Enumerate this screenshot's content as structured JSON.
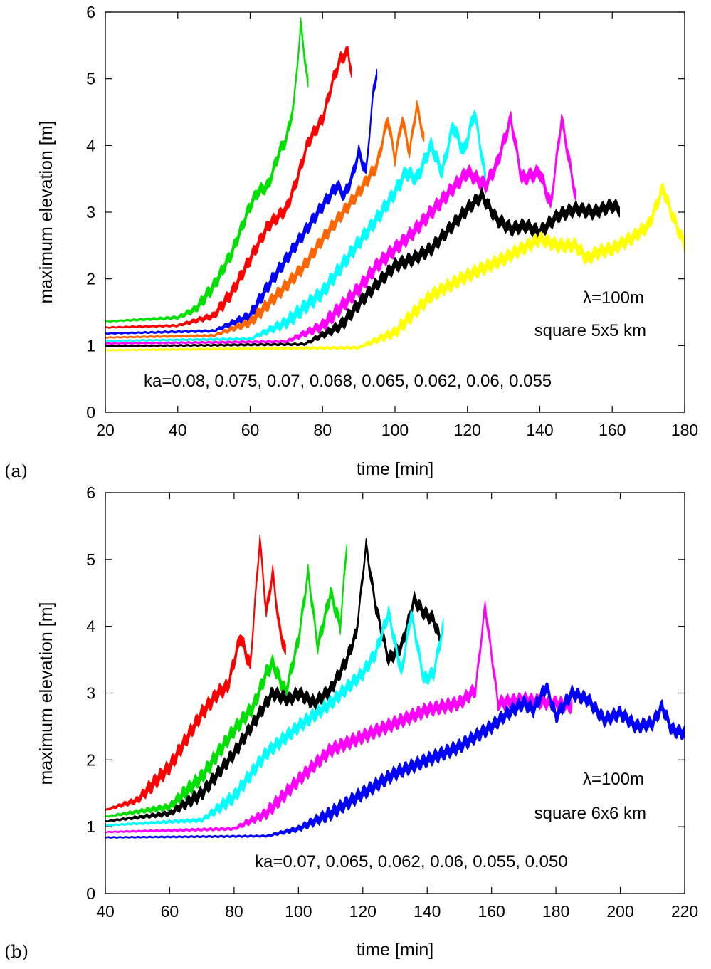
{
  "chart_data": [
    {
      "type": "line",
      "panel_label": "(a)",
      "xlabel": "time  [min]",
      "ylabel": "maximum elevation  [m]",
      "xlim": [
        20,
        180
      ],
      "ylim": [
        0,
        6
      ],
      "xticks": [
        20,
        40,
        60,
        80,
        100,
        120,
        140,
        160,
        180
      ],
      "yticks": [
        0,
        1,
        2,
        3,
        4,
        5,
        6
      ],
      "grid": false,
      "annotations": [
        "λ=100m",
        "square 5x5 km",
        "ka=0.08, 0.075, 0.07, 0.068, 0.065, 0.062, 0.06, 0.055"
      ],
      "series": [
        {
          "color": "#00e000",
          "band": 0.12,
          "x": [
            20,
            40,
            45,
            50,
            55,
            60,
            62,
            65,
            68,
            70,
            72,
            74,
            76
          ],
          "y": [
            1.36,
            1.42,
            1.55,
            1.9,
            2.4,
            3.1,
            3.3,
            3.4,
            3.9,
            4.1,
            4.6,
            5.8,
            4.9
          ]
        },
        {
          "color": "#ff0000",
          "band": 0.12,
          "x": [
            20,
            40,
            50,
            55,
            60,
            65,
            70,
            73,
            76,
            80,
            83,
            85,
            87,
            88
          ],
          "y": [
            1.27,
            1.3,
            1.45,
            1.8,
            2.3,
            2.8,
            3.05,
            3.5,
            4.05,
            4.4,
            5.0,
            5.3,
            5.4,
            5.1
          ]
        },
        {
          "color": "#0000ff",
          "band": 0.12,
          "x": [
            20,
            50,
            60,
            65,
            70,
            75,
            80,
            84,
            86,
            88,
            90,
            92,
            94,
            95
          ],
          "y": [
            1.18,
            1.22,
            1.45,
            1.9,
            2.3,
            2.7,
            3.1,
            3.4,
            3.25,
            3.5,
            3.9,
            3.6,
            4.8,
            5.1
          ]
        },
        {
          "color": "#ff6600",
          "band": 0.12,
          "x": [
            20,
            50,
            60,
            70,
            75,
            80,
            85,
            90,
            95,
            98,
            100,
            102,
            104,
            106,
            108
          ],
          "y": [
            1.12,
            1.15,
            1.35,
            1.9,
            2.2,
            2.6,
            2.95,
            3.3,
            3.7,
            4.4,
            3.8,
            4.4,
            3.9,
            4.6,
            4.1
          ]
        },
        {
          "color": "#00ffff",
          "band": 0.14,
          "x": [
            20,
            60,
            70,
            80,
            88,
            95,
            100,
            103,
            106,
            110,
            113,
            116,
            119,
            122,
            125
          ],
          "y": [
            1.07,
            1.1,
            1.35,
            1.8,
            2.4,
            2.9,
            3.3,
            3.6,
            3.5,
            4.0,
            3.6,
            4.3,
            3.9,
            4.5,
            3.5
          ]
        },
        {
          "color": "#ff00ff",
          "band": 0.14,
          "x": [
            20,
            70,
            80,
            90,
            95,
            100,
            105,
            110,
            115,
            120,
            125,
            128,
            132,
            135,
            140,
            143,
            146,
            150
          ],
          "y": [
            1.03,
            1.06,
            1.3,
            1.85,
            2.2,
            2.45,
            2.7,
            3.0,
            3.3,
            3.6,
            3.4,
            3.7,
            4.4,
            3.5,
            3.6,
            3.1,
            4.4,
            3.2
          ]
        },
        {
          "color": "#000000",
          "band": 0.13,
          "x": [
            20,
            75,
            85,
            92,
            100,
            105,
            110,
            115,
            120,
            124,
            128,
            132,
            136,
            140,
            145,
            150,
            155,
            160,
            162
          ],
          "y": [
            0.99,
            1.02,
            1.3,
            1.75,
            2.2,
            2.3,
            2.45,
            2.75,
            3.05,
            3.25,
            2.9,
            2.75,
            2.8,
            2.7,
            2.95,
            3.05,
            3.0,
            3.1,
            3.05
          ]
        },
        {
          "color": "#ffff00",
          "band": 0.13,
          "x": [
            20,
            90,
            100,
            110,
            120,
            130,
            135,
            140,
            145,
            150,
            153,
            156,
            160,
            165,
            170,
            174,
            177,
            180
          ],
          "y": [
            0.93,
            0.97,
            1.2,
            1.75,
            2.05,
            2.3,
            2.45,
            2.6,
            2.5,
            2.5,
            2.3,
            2.4,
            2.45,
            2.6,
            2.8,
            3.35,
            2.9,
            2.5
          ]
        }
      ]
    },
    {
      "type": "line",
      "panel_label": "(b)",
      "xlabel": "time  [min]",
      "ylabel": "maximum elevation  [m]",
      "xlim": [
        40,
        220
      ],
      "ylim": [
        0,
        6
      ],
      "xticks": [
        40,
        60,
        80,
        100,
        120,
        140,
        160,
        180,
        200,
        220
      ],
      "yticks": [
        0,
        1,
        2,
        3,
        4,
        5,
        6
      ],
      "grid": false,
      "annotations": [
        "λ=100m",
        "square 6x6 km",
        "ka=0.07, 0.065, 0.062, 0.06, 0.055, 0.050"
      ],
      "series": [
        {
          "color": "#ff0000",
          "band": 0.14,
          "x": [
            40,
            50,
            60,
            65,
            70,
            75,
            78,
            82,
            85,
            88,
            90,
            92,
            94,
            96
          ],
          "y": [
            1.25,
            1.4,
            1.9,
            2.3,
            2.7,
            3.0,
            3.1,
            3.85,
            3.4,
            5.3,
            4.2,
            4.8,
            4.0,
            3.6
          ]
        },
        {
          "color": "#00e000",
          "band": 0.14,
          "x": [
            40,
            60,
            70,
            80,
            86,
            90,
            92,
            96,
            100,
            103,
            106,
            110,
            113,
            115
          ],
          "y": [
            1.15,
            1.3,
            1.75,
            2.45,
            2.8,
            3.3,
            3.45,
            3.0,
            3.8,
            4.8,
            3.7,
            4.5,
            4.0,
            5.2
          ]
        },
        {
          "color": "#000000",
          "band": 0.13,
          "x": [
            40,
            60,
            70,
            80,
            88,
            92,
            97,
            100,
            105,
            110,
            115,
            118,
            121,
            124,
            128,
            132,
            136,
            139,
            142,
            144
          ],
          "y": [
            1.08,
            1.2,
            1.5,
            2.1,
            2.7,
            3.0,
            2.9,
            3.0,
            2.85,
            3.05,
            3.5,
            3.9,
            5.2,
            4.3,
            3.5,
            3.7,
            4.4,
            4.2,
            4.1,
            3.8
          ]
        },
        {
          "color": "#00ffff",
          "band": 0.13,
          "x": [
            40,
            70,
            80,
            90,
            100,
            110,
            120,
            124,
            128,
            132,
            135,
            139,
            142,
            145
          ],
          "y": [
            1.02,
            1.1,
            1.45,
            2.1,
            2.5,
            2.85,
            3.3,
            3.6,
            4.2,
            3.3,
            4.2,
            3.2,
            3.3,
            4.0
          ]
        },
        {
          "color": "#ff00ff",
          "band": 0.13,
          "x": [
            40,
            80,
            90,
            100,
            110,
            120,
            130,
            140,
            150,
            155,
            158,
            162,
            170,
            180,
            185
          ],
          "y": [
            0.92,
            0.97,
            1.2,
            1.7,
            2.15,
            2.35,
            2.55,
            2.75,
            2.85,
            3.05,
            4.3,
            2.85,
            2.9,
            2.85,
            2.8
          ]
        },
        {
          "color": "#0000ff",
          "band": 0.13,
          "x": [
            40,
            90,
            100,
            110,
            120,
            130,
            140,
            150,
            160,
            165,
            170,
            173,
            177,
            180,
            185,
            190,
            195,
            200,
            205,
            210,
            213,
            216,
            220
          ],
          "y": [
            0.84,
            0.86,
            0.97,
            1.2,
            1.5,
            1.8,
            2.0,
            2.2,
            2.5,
            2.7,
            2.85,
            2.75,
            3.1,
            2.65,
            3.0,
            2.9,
            2.6,
            2.7,
            2.5,
            2.55,
            2.8,
            2.45,
            2.4
          ]
        }
      ]
    }
  ]
}
